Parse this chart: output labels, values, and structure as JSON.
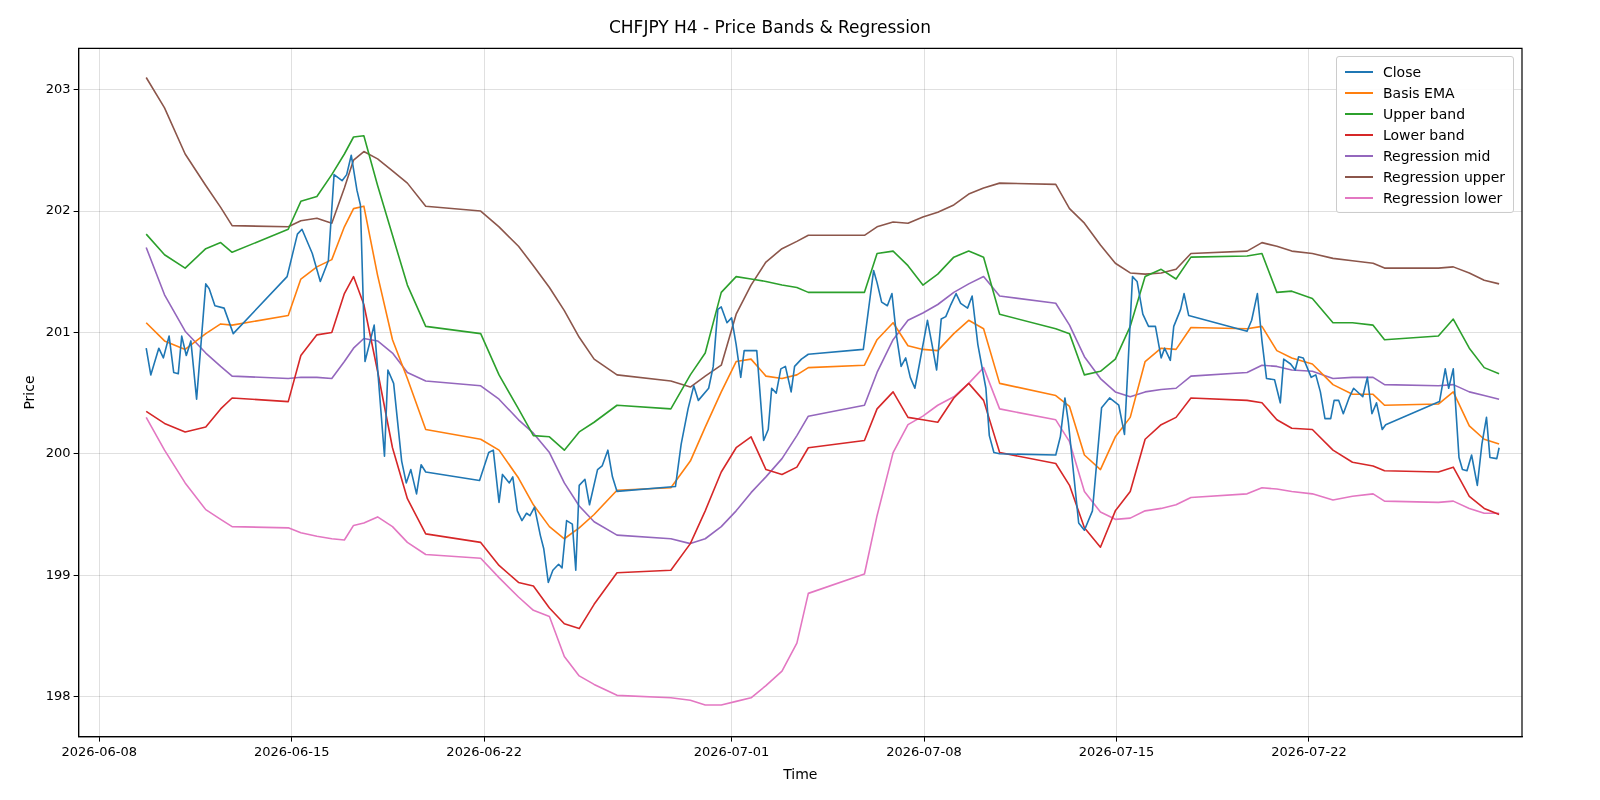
{
  "chart_data": {
    "type": "line",
    "title": "CHFJPY H4 - Price Bands & Regression",
    "xlabel": "Time",
    "ylabel": "Price",
    "xlim": [
      "2026-06-07T06:00",
      "2026-07-29T18:00"
    ],
    "ylim": [
      197.67,
      203.34
    ],
    "xticks": [
      "2026-06-08",
      "2026-06-15",
      "2026-06-22",
      "2026-07-01",
      "2026-07-08",
      "2026-07-15",
      "2026-07-22"
    ],
    "yticks": [
      198,
      199,
      200,
      201,
      202,
      203
    ],
    "grid": true,
    "legend": "top right",
    "x": [
      "2026-06-09T17:00",
      "2026-06-10T09:00",
      "2026-06-11T03:00",
      "2026-06-11T21:00",
      "2026-06-12T10:00",
      "2026-06-12T20:00",
      "2026-06-14T21:00",
      "2026-06-15T08:00",
      "2026-06-15T22:00",
      "2026-06-16T11:00",
      "2026-06-16T22:00",
      "2026-06-17T06:00",
      "2026-06-17T15:00",
      "2026-06-18T03:00",
      "2026-06-18T16:00",
      "2026-06-19T05:00",
      "2026-06-19T21:00",
      "2026-06-21T21:00",
      "2026-06-22T13:00",
      "2026-06-23T06:00",
      "2026-06-23T19:00",
      "2026-06-24T09:00",
      "2026-06-24T22:00",
      "2026-06-25T11:00",
      "2026-06-26T00:00",
      "2026-06-26T20:00",
      "2026-06-28T19:00",
      "2026-06-29T12:00",
      "2026-06-30T01:00",
      "2026-06-30T15:00",
      "2026-07-01T04:00",
      "2026-07-01T17:00",
      "2026-07-02T06:00",
      "2026-07-02T20:00",
      "2026-07-03T09:00",
      "2026-07-03T19:00",
      "2026-07-05T20:00",
      "2026-07-06T07:00",
      "2026-07-06T21:00",
      "2026-07-07T10:00",
      "2026-07-07T23:00",
      "2026-07-08T12:00",
      "2026-07-09T02:00",
      "2026-07-09T15:00",
      "2026-07-10T04:00",
      "2026-07-10T18:00",
      "2026-07-12T19:00",
      "2026-07-13T07:00",
      "2026-07-13T20:00",
      "2026-07-14T10:00",
      "2026-07-14T23:00",
      "2026-07-15T12:00",
      "2026-07-16T01:00",
      "2026-07-16T15:00",
      "2026-07-17T04:00",
      "2026-07-17T17:00",
      "2026-07-19T18:00",
      "2026-07-20T07:00",
      "2026-07-20T20:00",
      "2026-07-21T09:00",
      "2026-07-22T03:00",
      "2026-07-22T21:00",
      "2026-07-23T14:00",
      "2026-07-24T08:00",
      "2026-07-24T18:00",
      "2026-07-26T17:00",
      "2026-07-27T06:00",
      "2026-07-27T20:00",
      "2026-07-28T09:00",
      "2026-07-28T22:00"
    ],
    "series": [
      {
        "name": "Close",
        "color": "#1f77b4",
        "x": [
          "2026-06-09T17:00",
          "2026-06-09T21:00",
          "2026-06-10T04:00",
          "2026-06-10T08:00",
          "2026-06-10T13:00",
          "2026-06-10T17:00",
          "2026-06-10T21:00",
          "2026-06-11T00:00",
          "2026-06-11T04:00",
          "2026-06-11T08:00",
          "2026-06-11T13:00",
          "2026-06-11T21:00",
          "2026-06-12T00:00",
          "2026-06-12T05:00",
          "2026-06-12T13:00",
          "2026-06-12T21:00",
          "2026-06-14T20:00",
          "2026-06-15T05:00",
          "2026-06-15T09:00",
          "2026-06-15T18:00",
          "2026-06-16T01:00",
          "2026-06-16T08:00",
          "2026-06-16T13:00",
          "2026-06-16T20:00",
          "2026-06-17T00:00",
          "2026-06-17T04:00",
          "2026-06-17T09:00",
          "2026-06-17T12:00",
          "2026-06-17T16:00",
          "2026-06-18T00:00",
          "2026-06-18T09:00",
          "2026-06-18T12:00",
          "2026-06-18T17:00",
          "2026-06-19T00:00",
          "2026-06-19T04:00",
          "2026-06-19T08:00",
          "2026-06-19T13:00",
          "2026-06-19T17:00",
          "2026-06-19T21:00",
          "2026-06-21T20:00",
          "2026-06-22T04:00",
          "2026-06-22T08:00",
          "2026-06-22T13:00",
          "2026-06-22T16:00",
          "2026-06-22T22:00",
          "2026-06-23T01:00",
          "2026-06-23T05:00",
          "2026-06-23T09:00",
          "2026-06-23T13:00",
          "2026-06-23T16:00",
          "2026-06-23T20:00",
          "2026-06-24T01:00",
          "2026-06-24T04:00",
          "2026-06-24T08:00",
          "2026-06-24T12:00",
          "2026-06-24T17:00",
          "2026-06-24T20:00",
          "2026-06-25T00:00",
          "2026-06-25T05:00",
          "2026-06-25T08:00",
          "2026-06-25T11:00",
          "2026-06-25T16:00",
          "2026-06-25T20:00",
          "2026-06-26T03:00",
          "2026-06-26T07:00",
          "2026-06-26T12:00",
          "2026-06-26T16:00",
          "2026-06-26T20:00",
          "2026-06-28T23:00",
          "2026-06-29T04:00",
          "2026-06-29T10:00",
          "2026-06-29T15:00",
          "2026-06-29T19:00",
          "2026-06-30T04:00",
          "2026-06-30T08:00",
          "2026-06-30T12:00",
          "2026-06-30T15:00",
          "2026-06-30T20:00",
          "2026-07-01T00:00",
          "2026-07-01T04:00",
          "2026-07-01T08:00",
          "2026-07-01T11:00",
          "2026-07-01T22:00",
          "2026-07-02T04:00",
          "2026-07-02T08:00",
          "2026-07-02T11:00",
          "2026-07-02T15:00",
          "2026-07-02T19:00",
          "2026-07-02T23:00",
          "2026-07-03T04:00",
          "2026-07-03T07:00",
          "2026-07-03T13:00",
          "2026-07-03T19:00",
          "2026-07-05T19:00",
          "2026-07-06T04:00",
          "2026-07-06T07:00",
          "2026-07-06T11:00",
          "2026-07-06T16:00",
          "2026-07-06T20:00",
          "2026-07-07T00:00",
          "2026-07-07T04:00",
          "2026-07-07T08:00",
          "2026-07-07T12:00",
          "2026-07-07T16:00",
          "2026-07-07T20:00",
          "2026-07-08T03:00",
          "2026-07-08T07:00",
          "2026-07-08T11:00",
          "2026-07-08T15:00",
          "2026-07-08T19:00",
          "2026-07-08T23:00",
          "2026-07-09T04:00",
          "2026-07-09T08:00",
          "2026-07-09T14:00",
          "2026-07-09T18:00",
          "2026-07-09T23:00",
          "2026-07-10T06:00",
          "2026-07-10T09:00",
          "2026-07-10T13:00",
          "2026-07-10T18:00",
          "2026-07-12T19:00",
          "2026-07-12T23:00",
          "2026-07-13T03:00",
          "2026-07-13T06:00",
          "2026-07-13T15:00",
          "2026-07-13T20:00",
          "2026-07-14T03:00",
          "2026-07-14T11:00",
          "2026-07-14T18:00",
          "2026-07-15T02:00",
          "2026-07-15T07:00",
          "2026-07-15T14:00",
          "2026-07-15T18:00",
          "2026-07-15T23:00",
          "2026-07-16T04:00",
          "2026-07-16T10:00",
          "2026-07-16T15:00",
          "2026-07-16T18:00",
          "2026-07-16T23:00",
          "2026-07-17T02:00",
          "2026-07-17T08:00",
          "2026-07-17T11:00",
          "2026-07-17T15:00",
          "2026-07-19T18:00",
          "2026-07-19T22:00",
          "2026-07-20T03:00",
          "2026-07-20T07:00",
          "2026-07-20T11:00",
          "2026-07-20T18:00",
          "2026-07-20T23:00",
          "2026-07-21T02:00",
          "2026-07-21T08:00",
          "2026-07-21T12:00",
          "2026-07-21T15:00",
          "2026-07-21T19:00",
          "2026-07-22T02:00",
          "2026-07-22T06:00",
          "2026-07-22T10:00",
          "2026-07-22T14:00",
          "2026-07-22T19:00",
          "2026-07-22T22:00",
          "2026-07-23T02:00",
          "2026-07-23T06:00",
          "2026-07-23T11:00",
          "2026-07-23T15:00",
          "2026-07-23T23:00",
          "2026-07-24T03:00",
          "2026-07-24T07:00",
          "2026-07-24T11:00",
          "2026-07-24T16:00",
          "2026-07-24T19:00",
          "2026-07-26T18:00",
          "2026-07-26T23:00",
          "2026-07-27T02:00",
          "2026-07-27T06:00",
          "2026-07-27T11:00",
          "2026-07-27T14:00",
          "2026-07-27T18:00",
          "2026-07-27T22:00",
          "2026-07-28T03:00",
          "2026-07-28T07:00",
          "2026-07-28T11:00",
          "2026-07-28T14:00",
          "2026-07-28T20:00",
          "2026-07-28T22:00"
        ],
        "values": [
          200.87,
          200.65,
          200.87,
          200.79,
          200.97,
          200.67,
          200.66,
          200.97,
          200.81,
          200.93,
          200.45,
          201.4,
          201.36,
          201.22,
          201.2,
          200.99,
          201.46,
          201.81,
          201.85,
          201.65,
          201.42,
          201.59,
          202.3,
          202.25,
          202.3,
          202.46,
          202.17,
          202.05,
          200.76,
          201.06,
          199.98,
          200.69,
          200.58,
          199.94,
          199.76,
          199.87,
          199.67,
          199.91,
          199.85,
          199.78,
          200.01,
          200.03,
          199.6,
          199.83,
          199.76,
          199.81,
          199.53,
          199.45,
          199.51,
          199.49,
          199.56,
          199.33,
          199.22,
          198.94,
          199.04,
          199.09,
          199.06,
          199.45,
          199.42,
          199.04,
          199.74,
          199.79,
          199.58,
          199.87,
          199.9,
          200.03,
          199.81,
          199.69,
          199.73,
          200.08,
          200.37,
          200.56,
          200.44,
          200.54,
          200.72,
          201.19,
          201.21,
          201.08,
          201.12,
          200.9,
          200.63,
          200.85,
          200.85,
          200.11,
          200.2,
          200.54,
          200.5,
          200.7,
          200.72,
          200.51,
          200.72,
          200.78,
          200.82,
          200.86,
          201.51,
          201.41,
          201.25,
          201.22,
          201.32,
          200.97,
          200.72,
          200.79,
          200.63,
          200.54,
          200.74,
          201.1,
          200.9,
          200.69,
          201.11,
          201.13,
          201.22,
          201.32,
          201.24,
          201.2,
          201.3,
          200.9,
          200.54,
          200.15,
          200.01,
          200.0,
          199.99,
          200.14,
          200.46,
          200.26,
          199.43,
          199.37,
          199.53,
          200.38,
          200.46,
          200.4,
          200.16,
          201.46,
          201.42,
          201.15,
          201.05,
          201.05,
          200.79,
          200.87,
          200.77,
          201.05,
          201.19,
          201.32,
          201.14,
          201.01,
          201.1,
          201.32,
          200.93,
          200.62,
          200.61,
          200.42,
          200.78,
          200.74,
          200.69,
          200.8,
          200.79,
          200.63,
          200.65,
          200.51,
          200.29,
          200.29,
          200.44,
          200.44,
          200.33,
          200.46,
          200.54,
          200.47,
          200.63,
          200.33,
          200.42,
          200.2,
          200.24,
          200.43,
          200.7,
          200.54,
          200.7,
          199.97,
          199.87,
          199.86,
          199.99,
          199.74,
          200.08,
          200.3,
          199.97,
          199.96,
          200.05
        ]
      },
      {
        "name": "Basis EMA",
        "color": "#ff7f0e",
        "values": [
          201.08,
          200.93,
          200.86,
          200.99,
          201.07,
          201.06,
          201.14,
          201.44,
          201.54,
          201.6,
          201.87,
          202.02,
          202.04,
          201.47,
          200.94,
          200.62,
          200.2,
          200.12,
          200.03,
          199.8,
          199.58,
          199.4,
          199.3,
          199.39,
          199.5,
          199.7,
          199.72,
          199.94,
          200.22,
          200.51,
          200.76,
          200.78,
          200.64,
          200.62,
          200.65,
          200.71,
          200.73,
          200.94,
          201.08,
          200.89,
          200.86,
          200.85,
          200.99,
          201.1,
          201.03,
          200.58,
          200.48,
          200.39,
          199.99,
          199.87,
          200.14,
          200.3,
          200.76,
          200.87,
          200.86,
          201.04,
          201.03,
          201.05,
          200.85,
          200.79,
          200.74,
          200.57,
          200.49,
          200.49,
          200.4,
          200.41,
          200.51,
          200.23,
          200.12,
          200.08
        ]
      },
      {
        "name": "Upper band",
        "color": "#2ca02c",
        "values": [
          201.81,
          201.64,
          201.53,
          201.69,
          201.74,
          201.66,
          201.85,
          202.08,
          202.12,
          202.3,
          202.47,
          202.61,
          202.62,
          202.21,
          201.8,
          201.39,
          201.05,
          200.99,
          200.65,
          200.37,
          200.15,
          200.14,
          200.03,
          200.18,
          200.26,
          200.4,
          200.37,
          200.65,
          200.83,
          201.33,
          201.46,
          201.44,
          201.42,
          201.39,
          201.37,
          201.33,
          201.33,
          201.65,
          201.67,
          201.55,
          201.39,
          201.48,
          201.62,
          201.67,
          201.62,
          201.15,
          201.03,
          200.99,
          200.65,
          200.68,
          200.78,
          201.05,
          201.46,
          201.52,
          201.44,
          201.62,
          201.63,
          201.65,
          201.33,
          201.34,
          201.28,
          201.08,
          201.08,
          201.06,
          200.94,
          200.97,
          201.11,
          200.87,
          200.71,
          200.66
        ]
      },
      {
        "name": "Lower band",
        "color": "#d62728",
        "values": [
          200.35,
          200.25,
          200.18,
          200.22,
          200.37,
          200.46,
          200.43,
          200.81,
          200.98,
          201.0,
          201.32,
          201.46,
          201.23,
          200.68,
          200.05,
          199.63,
          199.34,
          199.27,
          199.08,
          198.94,
          198.91,
          198.73,
          198.6,
          198.56,
          198.76,
          199.02,
          199.04,
          199.26,
          199.53,
          199.85,
          200.05,
          200.14,
          199.87,
          199.83,
          199.89,
          200.05,
          200.11,
          200.37,
          200.51,
          200.3,
          200.28,
          200.26,
          200.46,
          200.58,
          200.44,
          200.01,
          199.92,
          199.74,
          199.39,
          199.23,
          199.53,
          199.69,
          200.12,
          200.24,
          200.3,
          200.46,
          200.44,
          200.42,
          200.28,
          200.21,
          200.2,
          200.03,
          199.93,
          199.9,
          199.86,
          199.85,
          199.89,
          199.65,
          199.55,
          199.5
        ]
      },
      {
        "name": "Regression mid",
        "color": "#9467bd",
        "values": [
          201.7,
          201.31,
          201.01,
          200.83,
          200.72,
          200.64,
          200.62,
          200.63,
          200.63,
          200.62,
          200.76,
          200.87,
          200.95,
          200.93,
          200.83,
          200.67,
          200.6,
          200.56,
          200.45,
          200.28,
          200.17,
          200.01,
          199.76,
          199.57,
          199.44,
          199.33,
          199.3,
          199.26,
          199.3,
          199.4,
          199.53,
          199.68,
          199.81,
          199.96,
          200.15,
          200.31,
          200.4,
          200.67,
          200.94,
          201.1,
          201.16,
          201.23,
          201.33,
          201.4,
          201.46,
          201.3,
          201.24,
          201.06,
          200.8,
          200.62,
          200.51,
          200.47,
          200.51,
          200.53,
          200.54,
          200.64,
          200.67,
          200.73,
          200.72,
          200.69,
          200.68,
          200.62,
          200.63,
          200.63,
          200.57,
          200.56,
          200.57,
          200.51,
          200.48,
          200.45
        ]
      },
      {
        "name": "Regression upper",
        "color": "#8c564b",
        "values": [
          203.1,
          202.85,
          202.47,
          202.21,
          202.03,
          201.88,
          201.87,
          201.92,
          201.94,
          201.9,
          202.19,
          202.42,
          202.49,
          202.43,
          202.33,
          202.23,
          202.04,
          202.0,
          201.87,
          201.71,
          201.55,
          201.37,
          201.18,
          200.96,
          200.78,
          200.65,
          200.6,
          200.55,
          200.64,
          200.73,
          201.15,
          201.39,
          201.58,
          201.69,
          201.75,
          201.8,
          201.8,
          201.87,
          201.91,
          201.9,
          201.95,
          201.99,
          202.05,
          202.14,
          202.19,
          202.23,
          202.22,
          202.02,
          201.9,
          201.72,
          201.57,
          201.49,
          201.48,
          201.49,
          201.52,
          201.65,
          201.67,
          201.74,
          201.71,
          201.67,
          201.65,
          201.61,
          201.59,
          201.57,
          201.53,
          201.53,
          201.54,
          201.49,
          201.43,
          201.4
        ]
      },
      {
        "name": "Regression lower",
        "color": "#e377c2",
        "values": [
          200.3,
          200.03,
          199.76,
          199.54,
          199.46,
          199.4,
          199.39,
          199.35,
          199.32,
          199.3,
          199.29,
          199.41,
          199.43,
          199.48,
          199.4,
          199.27,
          199.17,
          199.14,
          198.98,
          198.82,
          198.71,
          198.66,
          198.33,
          198.17,
          198.1,
          198.01,
          197.99,
          197.97,
          197.93,
          197.93,
          197.96,
          197.99,
          198.09,
          198.21,
          198.44,
          198.85,
          199.01,
          199.49,
          200.01,
          200.24,
          200.31,
          200.4,
          200.47,
          200.58,
          200.71,
          200.37,
          200.28,
          200.1,
          199.69,
          199.52,
          199.46,
          199.47,
          199.53,
          199.55,
          199.58,
          199.64,
          199.67,
          199.72,
          199.71,
          199.69,
          199.67,
          199.62,
          199.65,
          199.67,
          199.61,
          199.6,
          199.61,
          199.55,
          199.51,
          199.51
        ]
      }
    ]
  }
}
